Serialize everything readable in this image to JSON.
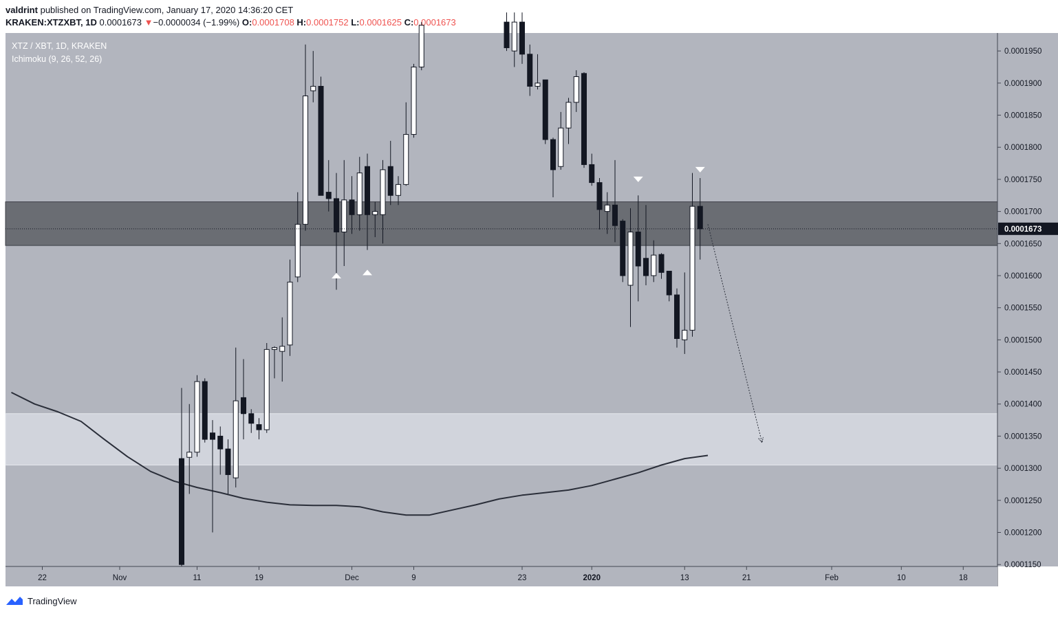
{
  "header": {
    "author": "valdrint",
    "published_text": "published on TradingView.com, January 17, 2020 14:36:20 CET",
    "symbol": "KRAKEN:XTZXBT, 1D",
    "last": "0.0001673",
    "arrow": "▼",
    "change": "−0.0000034 (−1.99%)",
    "o_label": "O:",
    "o_value": "0.0001708",
    "h_label": "H:",
    "h_value": "0.0001752",
    "l_label": "L:",
    "l_value": "0.0001625",
    "c_label": "C:",
    "c_value": "0.0001673"
  },
  "legend": {
    "title": "XTZ / XBT, 1D, KRAKEN",
    "indicator": "Ichimoku (9, 26, 52, 26)"
  },
  "footer": {
    "brand": "TradingView"
  },
  "colors": {
    "background": "#b2b5be",
    "resistance_zone": "#6a6d73",
    "support_zone": "#d1d4dc",
    "bull_body": "#ffffff",
    "bear_body": "#131722",
    "wick": "#131722",
    "kijun_line": "#2a2e39"
  },
  "chart_data": {
    "type": "candlestick",
    "title": "XTZ / XBT, 1D, KRAKEN",
    "price_axis": {
      "ticks": [
        "0.0001950",
        "0.0001900",
        "0.0001850",
        "0.0001800",
        "0.0001750",
        "0.0001700",
        "0.0001650",
        "0.0001600",
        "0.0001550",
        "0.0001500",
        "0.0001450",
        "0.0001400",
        "0.0001350",
        "0.0001300",
        "0.0001250",
        "0.0001200",
        "0.0001150"
      ],
      "ylim": [
        0.0001147,
        0.0001978
      ],
      "last_price_label": "0.0001673",
      "last_price": 0.0001673
    },
    "time_axis": {
      "ticks": [
        {
          "label": "22",
          "day": -40
        },
        {
          "label": "Nov",
          "day": -30
        },
        {
          "label": "11",
          "day": -20
        },
        {
          "label": "19",
          "day": -12
        },
        {
          "label": "Dec",
          "day": 0
        },
        {
          "label": "9",
          "day": 8
        },
        {
          "label": "23",
          "day": 22
        },
        {
          "label": "2020",
          "day": 31
        },
        {
          "label": "13",
          "day": 43
        },
        {
          "label": "21",
          "day": 51
        },
        {
          "label": "Feb",
          "day": 62
        },
        {
          "label": "10",
          "day": 71
        },
        {
          "label": "18",
          "day": 79
        }
      ]
    },
    "zones": [
      {
        "name": "resistance",
        "from": 0.0001647,
        "to": 0.0001715
      },
      {
        "name": "support",
        "from": 0.0001305,
        "to": 0.0001385
      }
    ],
    "candles": [
      {
        "d": -22,
        "o": 0.0001315,
        "h": 0.0001425,
        "l": 0.000112,
        "c": 0.000115
      },
      {
        "d": -21,
        "o": 0.0001317,
        "h": 0.00014,
        "l": 0.000126,
        "c": 0.0001325
      },
      {
        "d": -20,
        "o": 0.0001325,
        "h": 0.0001445,
        "l": 0.0001318,
        "c": 0.0001435
      },
      {
        "d": -19,
        "o": 0.0001435,
        "h": 0.000144,
        "l": 0.000134,
        "c": 0.0001345
      },
      {
        "d": -18,
        "o": 0.0001355,
        "h": 0.0001375,
        "l": 0.00012,
        "c": 0.0001345
      },
      {
        "d": -17,
        "o": 0.000135,
        "h": 0.0001365,
        "l": 0.000129,
        "c": 0.000133
      },
      {
        "d": -16,
        "o": 0.000133,
        "h": 0.0001345,
        "l": 0.000126,
        "c": 0.000129
      },
      {
        "d": -15,
        "o": 0.0001285,
        "h": 0.0001488,
        "l": 0.000127,
        "c": 0.0001405
      },
      {
        "d": -14,
        "o": 0.000141,
        "h": 0.000147,
        "l": 0.0001345,
        "c": 0.0001385
      },
      {
        "d": -13,
        "o": 0.0001385,
        "h": 0.0001392,
        "l": 0.0001355,
        "c": 0.000137
      },
      {
        "d": -12,
        "o": 0.0001368,
        "h": 0.0001378,
        "l": 0.0001345,
        "c": 0.000136
      },
      {
        "d": -11,
        "o": 0.000136,
        "h": 0.0001495,
        "l": 0.0001355,
        "c": 0.0001485
      },
      {
        "d": -10,
        "o": 0.0001485,
        "h": 0.000149,
        "l": 0.000144,
        "c": 0.0001488
      },
      {
        "d": -9,
        "o": 0.0001482,
        "h": 0.0001535,
        "l": 0.0001435,
        "c": 0.000149
      },
      {
        "d": -8,
        "o": 0.0001492,
        "h": 0.0001625,
        "l": 0.0001475,
        "c": 0.000159
      },
      {
        "d": -7,
        "o": 0.0001598,
        "h": 0.000173,
        "l": 0.000159,
        "c": 0.000168
      },
      {
        "d": -6,
        "o": 0.000168,
        "h": 0.000196,
        "l": 0.000167,
        "c": 0.000188
      },
      {
        "d": -5,
        "o": 0.0001888,
        "h": 0.000195,
        "l": 0.000187,
        "c": 0.0001895
      },
      {
        "d": -4,
        "o": 0.0001895,
        "h": 0.000191,
        "l": 0.0001725,
        "c": 0.0001725
      },
      {
        "d": -3,
        "o": 0.000173,
        "h": 0.000178,
        "l": 0.00017,
        "c": 0.000172
      },
      {
        "d": -2,
        "o": 0.000172,
        "h": 0.000176,
        "l": 0.0001578,
        "c": 0.0001668
      },
      {
        "d": -1,
        "o": 0.0001668,
        "h": 0.000178,
        "l": 0.0001615,
        "c": 0.0001718
      },
      {
        "d": 0,
        "o": 0.0001718,
        "h": 0.0001755,
        "l": 0.0001665,
        "c": 0.0001695
      },
      {
        "d": 1,
        "o": 0.0001695,
        "h": 0.0001785,
        "l": 0.000167,
        "c": 0.000176
      },
      {
        "d": 2,
        "o": 0.000177,
        "h": 0.000179,
        "l": 0.000164,
        "c": 0.0001695
      },
      {
        "d": 3,
        "o": 0.0001695,
        "h": 0.0001715,
        "l": 0.000166,
        "c": 0.00017
      },
      {
        "d": 4,
        "o": 0.0001695,
        "h": 0.000178,
        "l": 0.000165,
        "c": 0.0001765
      },
      {
        "d": 5,
        "o": 0.000177,
        "h": 0.000181,
        "l": 0.000171,
        "c": 0.0001725
      },
      {
        "d": 6,
        "o": 0.0001725,
        "h": 0.0001755,
        "l": 0.000171,
        "c": 0.0001742
      },
      {
        "d": 7,
        "o": 0.0001742,
        "h": 0.000187,
        "l": 0.000174,
        "c": 0.000182
      },
      {
        "d": 8,
        "o": 0.000182,
        "h": 0.000193,
        "l": 0.0001815,
        "c": 0.0001925
      },
      {
        "d": 9,
        "o": 0.0001925,
        "h": 0.0001995,
        "l": 0.000192,
        "c": 0.000199
      },
      {
        "d": 20,
        "o": 0.0001995,
        "h": 0.000201,
        "l": 0.000195,
        "c": 0.0001955
      },
      {
        "d": 21,
        "o": 0.000195,
        "h": 0.000201,
        "l": 0.0001925,
        "c": 0.0001995
      },
      {
        "d": 22,
        "o": 0.0001995,
        "h": 0.000201,
        "l": 0.000193,
        "c": 0.0001945
      },
      {
        "d": 23,
        "o": 0.0001945,
        "h": 0.000196,
        "l": 0.000188,
        "c": 0.0001895
      },
      {
        "d": 24,
        "o": 0.0001895,
        "h": 0.0001945,
        "l": 0.000189,
        "c": 0.00019
      },
      {
        "d": 25,
        "o": 0.0001905,
        "h": 0.0001905,
        "l": 0.0001805,
        "c": 0.0001812
      },
      {
        "d": 26,
        "o": 0.0001812,
        "h": 0.0001815,
        "l": 0.0001722,
        "c": 0.0001765
      },
      {
        "d": 27,
        "o": 0.000177,
        "h": 0.0001855,
        "l": 0.0001765,
        "c": 0.000183
      },
      {
        "d": 28,
        "o": 0.000183,
        "h": 0.0001877,
        "l": 0.0001805,
        "c": 0.000187
      },
      {
        "d": 29,
        "o": 0.000187,
        "h": 0.000192,
        "l": 0.0001855,
        "c": 0.000191
      },
      {
        "d": 30,
        "o": 0.0001915,
        "h": 0.0001917,
        "l": 0.0001768,
        "c": 0.0001773
      },
      {
        "d": 31,
        "o": 0.0001773,
        "h": 0.000179,
        "l": 0.000174,
        "c": 0.0001745
      },
      {
        "d": 32,
        "o": 0.0001745,
        "h": 0.0001752,
        "l": 0.0001672,
        "c": 0.0001703
      },
      {
        "d": 33,
        "o": 0.00017,
        "h": 0.000173,
        "l": 0.0001665,
        "c": 0.000171
      },
      {
        "d": 34,
        "o": 0.000171,
        "h": 0.000178,
        "l": 0.0001652,
        "c": 0.0001678
      },
      {
        "d": 35,
        "o": 0.0001685,
        "h": 0.0001688,
        "l": 0.000159,
        "c": 0.00016
      },
      {
        "d": 36,
        "o": 0.0001585,
        "h": 0.0001705,
        "l": 0.000152,
        "c": 0.0001668
      },
      {
        "d": 37,
        "o": 0.0001668,
        "h": 0.0001725,
        "l": 0.000156,
        "c": 0.0001615
      },
      {
        "d": 38,
        "o": 0.0001627,
        "h": 0.000171,
        "l": 0.0001585,
        "c": 0.00016
      },
      {
        "d": 39,
        "o": 0.00016,
        "h": 0.0001655,
        "l": 0.000159,
        "c": 0.0001632
      },
      {
        "d": 40,
        "o": 0.0001633,
        "h": 0.0001635,
        "l": 0.0001595,
        "c": 0.0001605
      },
      {
        "d": 41,
        "o": 0.0001607,
        "h": 0.0001607,
        "l": 0.000156,
        "c": 0.000157
      },
      {
        "d": 42,
        "o": 0.000157,
        "h": 0.000158,
        "l": 0.0001488,
        "c": 0.0001502
      },
      {
        "d": 43,
        "o": 0.00015,
        "h": 0.0001605,
        "l": 0.0001478,
        "c": 0.0001515
      },
      {
        "d": 44,
        "o": 0.0001515,
        "h": 0.000176,
        "l": 0.0001505,
        "c": 0.0001708
      },
      {
        "d": 45,
        "o": 0.0001708,
        "h": 0.0001752,
        "l": 0.0001625,
        "c": 0.0001673
      }
    ],
    "markers": [
      {
        "shape": "triangle-up",
        "d": -2,
        "price": 0.00016
      },
      {
        "shape": "triangle-up",
        "d": 2,
        "price": 0.0001605
      },
      {
        "shape": "triangle-down",
        "d": 37,
        "price": 0.000175
      },
      {
        "shape": "triangle-down",
        "d": 45,
        "price": 0.0001765
      }
    ],
    "projection": {
      "from_d": 46,
      "from_price": 0.000168,
      "to_d": 53,
      "to_price": 0.000134
    },
    "kijun_line": {
      "points": [
        [
          -44,
          0.0001418
        ],
        [
          -41,
          0.00014
        ],
        [
          -38,
          0.0001388
        ],
        [
          -35,
          0.0001373
        ],
        [
          -32,
          0.0001345
        ],
        [
          -29,
          0.0001318
        ],
        [
          -26,
          0.0001295
        ],
        [
          -23,
          0.000128
        ],
        [
          -20,
          0.000127
        ],
        [
          -17,
          0.0001262
        ],
        [
          -14,
          0.0001253
        ],
        [
          -11,
          0.0001247
        ],
        [
          -8,
          0.0001243
        ],
        [
          -5,
          0.0001242
        ],
        [
          -2,
          0.0001242
        ],
        [
          1,
          0.000124
        ],
        [
          4,
          0.0001232
        ],
        [
          7,
          0.0001227
        ],
        [
          10,
          0.0001227
        ],
        [
          13,
          0.0001235
        ],
        [
          16,
          0.0001243
        ],
        [
          19,
          0.0001252
        ],
        [
          22,
          0.0001258
        ],
        [
          25,
          0.0001262
        ],
        [
          28,
          0.0001266
        ],
        [
          31,
          0.0001273
        ],
        [
          34,
          0.0001283
        ],
        [
          37,
          0.0001293
        ],
        [
          40,
          0.0001305
        ],
        [
          43,
          0.0001315
        ],
        [
          46,
          0.000132
        ]
      ]
    }
  }
}
